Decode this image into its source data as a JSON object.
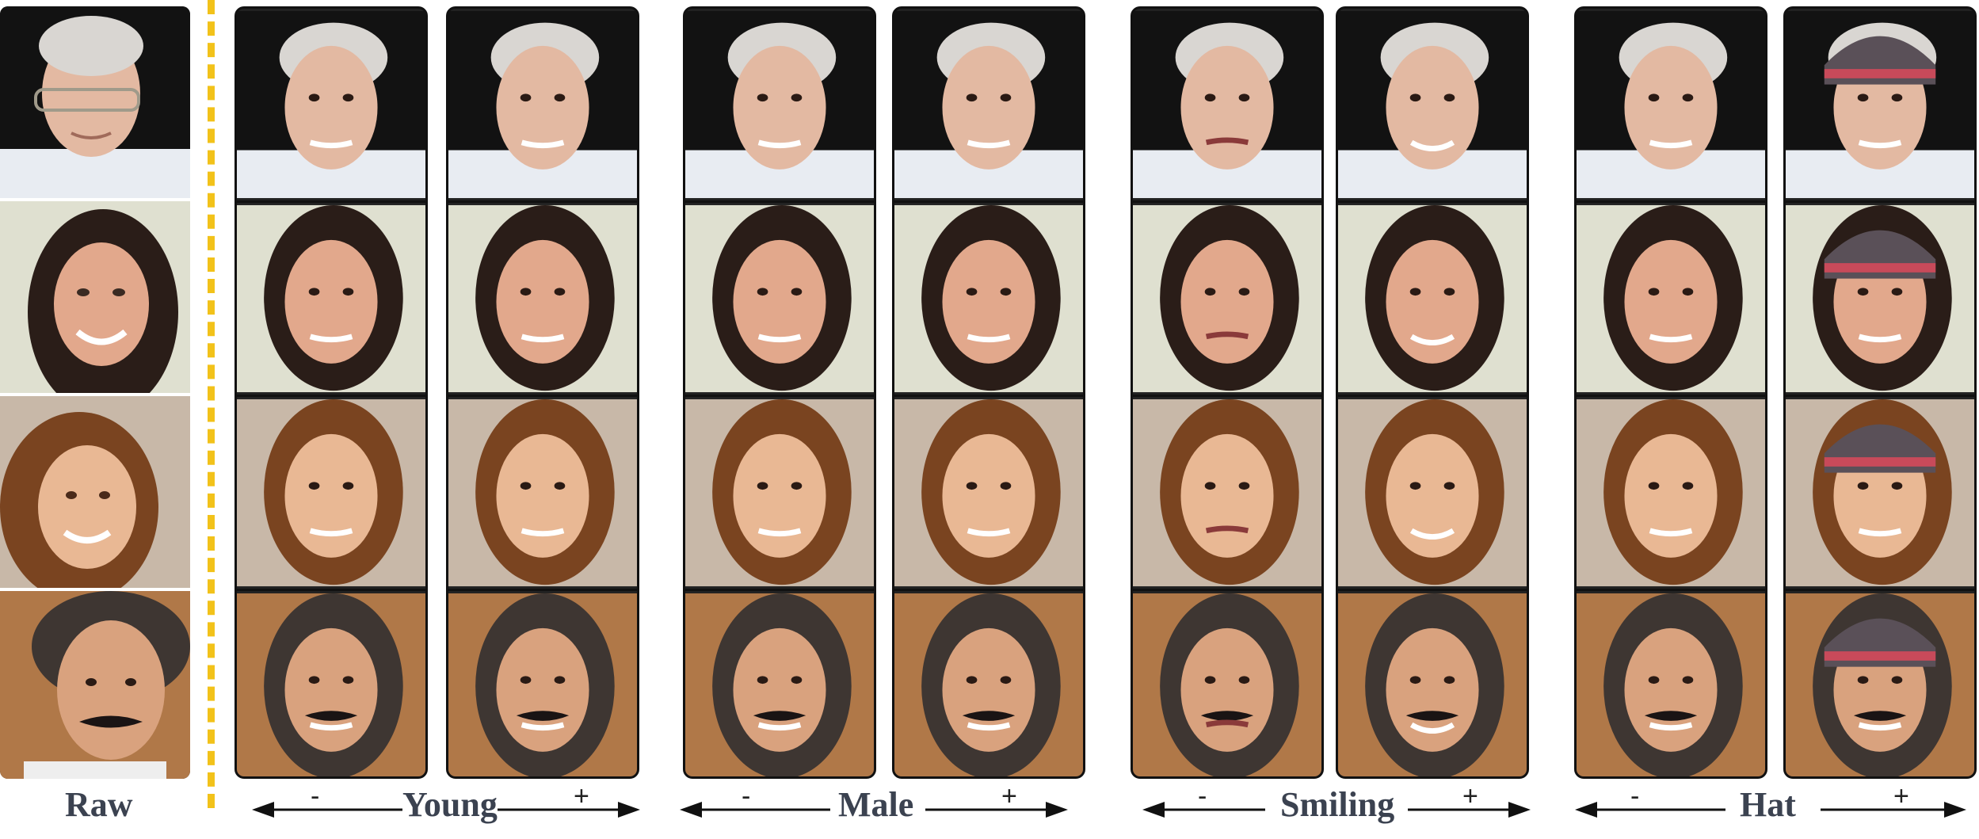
{
  "raw_label": "Raw",
  "attributes": [
    {
      "name": "Young",
      "minus": "-",
      "plus": "+"
    },
    {
      "name": "Male",
      "minus": "-",
      "plus": "+"
    },
    {
      "name": "Smiling",
      "minus": "-",
      "plus": "+"
    },
    {
      "name": "Hat",
      "minus": "-",
      "plus": "+"
    }
  ],
  "colors": {
    "divider": "#f2c21a",
    "label": "#3b4250"
  }
}
